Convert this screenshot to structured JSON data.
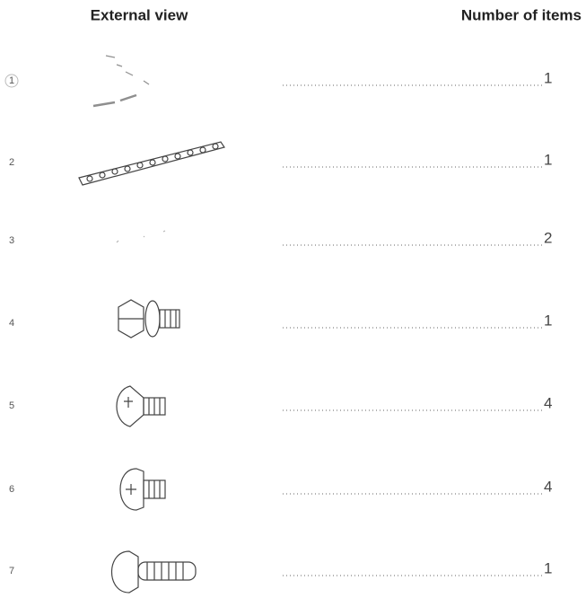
{
  "header": {
    "external_view": "External view",
    "number_of_items": "Number of items"
  },
  "rows": [
    {
      "index": "1",
      "count": "1"
    },
    {
      "index": "2",
      "count": "1"
    },
    {
      "index": "3",
      "count": "2"
    },
    {
      "index": "4",
      "count": "1"
    },
    {
      "index": "5",
      "count": "4"
    },
    {
      "index": "6",
      "count": "4"
    },
    {
      "index": "7",
      "count": "1"
    }
  ]
}
